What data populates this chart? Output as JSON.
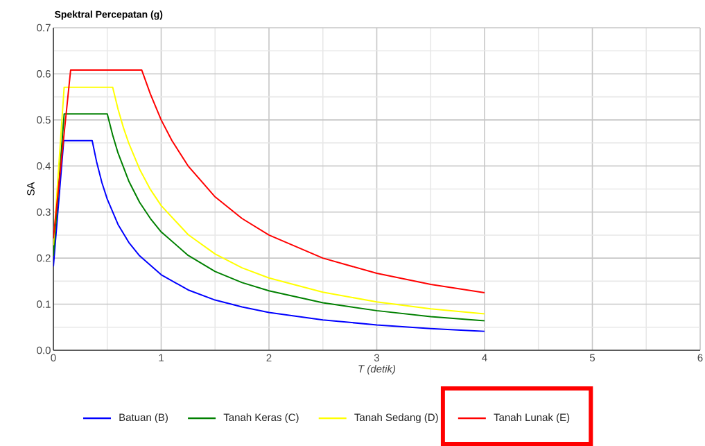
{
  "chart_data": {
    "type": "line",
    "title": "Spektral Percepatan (g)",
    "xlabel": "T (detik)",
    "ylabel": "SA",
    "xlim": [
      0,
      6
    ],
    "xticks": [
      0,
      1,
      2,
      3,
      4,
      5,
      6
    ],
    "ylim": [
      0,
      0.7
    ],
    "yticks": [
      {
        "value": 0,
        "label": "0.0"
      },
      0.1,
      0.2,
      0.3,
      0.4,
      0.5,
      0.6,
      0.7
    ],
    "grid": true,
    "legend": "bottom",
    "series": [
      {
        "name": "Batuan (B)",
        "color": "#0000ff",
        "x": [
          0,
          0.096,
          0.36,
          0.4,
          0.45,
          0.5,
          0.6,
          0.7,
          0.8,
          1.0,
          1.25,
          1.5,
          1.75,
          2,
          2.5,
          3,
          3.5,
          4
        ],
        "values": [
          0.182,
          0.455,
          0.455,
          0.41,
          0.364,
          0.328,
          0.273,
          0.234,
          0.205,
          0.164,
          0.131,
          0.109,
          0.094,
          0.082,
          0.066,
          0.055,
          0.047,
          0.041
        ]
      },
      {
        "name": "Tanah Keras (C)",
        "color": "#008000",
        "x": [
          0,
          0.1,
          0.5,
          0.55,
          0.6,
          0.7,
          0.8,
          0.9,
          1.0,
          1.25,
          1.5,
          1.75,
          2,
          2.5,
          3,
          3.5,
          4
        ],
        "values": [
          0.205,
          0.513,
          0.513,
          0.467,
          0.428,
          0.367,
          0.321,
          0.286,
          0.257,
          0.206,
          0.171,
          0.147,
          0.129,
          0.103,
          0.086,
          0.073,
          0.064
        ]
      },
      {
        "name": "Tanah Sedang (D)",
        "color": "#ffff00",
        "x": [
          0,
          0.1,
          0.55,
          0.6,
          0.65,
          0.7,
          0.8,
          0.9,
          1.0,
          1.25,
          1.5,
          1.75,
          2,
          2.5,
          3,
          3.5,
          4
        ],
        "values": [
          0.228,
          0.571,
          0.571,
          0.523,
          0.483,
          0.449,
          0.393,
          0.349,
          0.314,
          0.251,
          0.209,
          0.179,
          0.157,
          0.126,
          0.105,
          0.09,
          0.079
        ]
      },
      {
        "name": "Tanah Lunak (E)",
        "color": "#ff0000",
        "x": [
          0,
          0.16,
          0.82,
          0.9,
          1.0,
          1.1,
          1.25,
          1.5,
          1.75,
          2,
          2.5,
          3,
          3.5,
          4
        ],
        "values": [
          0.243,
          0.608,
          0.608,
          0.556,
          0.5,
          0.455,
          0.4,
          0.333,
          0.286,
          0.25,
          0.2,
          0.167,
          0.143,
          0.125
        ]
      }
    ]
  }
}
